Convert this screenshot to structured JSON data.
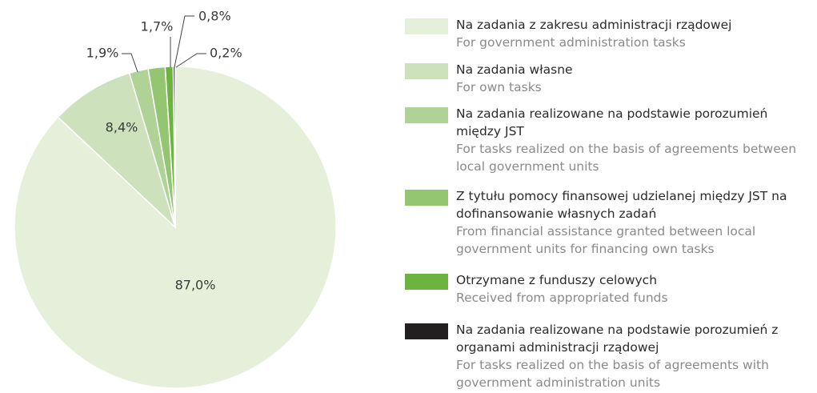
{
  "chart_data": {
    "type": "pie",
    "categories": [
      "Na zadania z zakresu administracji rządowej",
      "Na zadania własne",
      "Na zadania realizowane na podstawie porozumień między JST",
      "Z tytułu pomocy finansowej udzielanej między JST na dofinansowanie własnych zadań",
      "Otrzymane z funduszy celowych",
      "Na zadania realizowane na podstawie porozumień z organami administracji rządowej"
    ],
    "categories_en": [
      "For government administration tasks",
      "For own tasks",
      "For tasks realized on the basis of agreements between local government units",
      "From financial assistance granted between local government units for financing own tasks",
      "Received from appropriated funds",
      "For tasks realized on the basis of agreements with government administration units"
    ],
    "values": [
      87.0,
      8.4,
      1.9,
      1.7,
      0.8,
      0.2
    ],
    "value_labels": [
      "87,0%",
      "8,4%",
      "1,9%",
      "1,7%",
      "0,8%",
      "0,2%"
    ],
    "colors": [
      "#e6efd9",
      "#cde2bc",
      "#afd396",
      "#94c672",
      "#6db33f",
      "#231f20"
    ]
  }
}
